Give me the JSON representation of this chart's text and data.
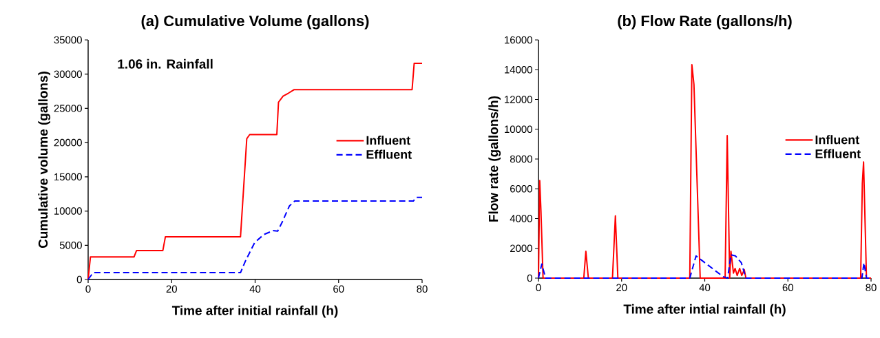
{
  "chart_data": [
    {
      "type": "line",
      "title": "(a) Cumulative Volume (gallons)",
      "xlabel": "Time after initial rainfall (h)",
      "ylabel": "Cumulative volume (gallons)",
      "annotations": [
        "1.06 in. Rainfall"
      ],
      "xlim": [
        0,
        80
      ],
      "ylim": [
        0,
        35000
      ],
      "xticks": [
        0,
        20,
        40,
        60,
        80
      ],
      "yticks": [
        0,
        5000,
        10000,
        15000,
        20000,
        25000,
        30000,
        35000
      ],
      "legend": "right",
      "series": [
        {
          "name": "Influent",
          "color": "#ff0000",
          "line_style": "solid",
          "x": [
            0,
            0.55,
            11.0,
            11.6,
            17.9,
            18.5,
            36.5,
            38.0,
            38.7,
            45.2,
            45.6,
            46.7,
            48.0,
            49.3,
            77.6,
            78.1,
            80
          ],
          "values": [
            0,
            3300,
            3300,
            4230,
            4230,
            6230,
            6230,
            20570,
            21170,
            21170,
            25900,
            26800,
            27230,
            27730,
            27730,
            31570,
            31570
          ]
        },
        {
          "name": "Effluent",
          "color": "#0000ff",
          "line_style": "dashed",
          "x": [
            0,
            1.2,
            36.5,
            37.7,
            39.9,
            42.1,
            44.3,
            45.4,
            46.5,
            48.2,
            49.5,
            77.9,
            78.7,
            80
          ],
          "values": [
            0,
            1000,
            1000,
            2730,
            5400,
            6570,
            7130,
            7070,
            8400,
            10730,
            11470,
            11470,
            12000,
            12000
          ]
        }
      ]
    },
    {
      "type": "line",
      "title": "(b) Flow Rate (gallons/h)",
      "xlabel": "Time after intial rainfall (h)",
      "ylabel": "Flow rate (gallons/h)",
      "xlim": [
        0,
        80
      ],
      "ylim": [
        0,
        16000
      ],
      "xticks": [
        0,
        20,
        40,
        60,
        80
      ],
      "yticks": [
        0,
        2000,
        4000,
        6000,
        8000,
        10000,
        12000,
        14000,
        16000
      ],
      "legend": "right",
      "series": [
        {
          "name": "Influent",
          "color": "#ff0000",
          "line_style": "solid",
          "x": [
            0,
            0.3,
            0.6,
            1.1,
            10.9,
            11.4,
            12.0,
            17.8,
            18.5,
            19.1,
            36.4,
            36.9,
            37.4,
            38.9,
            44.9,
            45.4,
            46.0,
            46.3,
            46.9,
            47.3,
            47.8,
            48.4,
            48.9,
            49.5,
            49.9,
            77.5,
            77.9,
            78.2,
            78.9,
            80
          ],
          "values": [
            0,
            6550,
            4500,
            0,
            0,
            1800,
            0,
            0,
            4180,
            0,
            0,
            14340,
            13000,
            0,
            0,
            9570,
            0,
            1800,
            340,
            650,
            180,
            650,
            180,
            570,
            0,
            0,
            6340,
            7800,
            0,
            0
          ]
        },
        {
          "name": "Effluent",
          "color": "#0000ff",
          "line_style": "dashed",
          "x": [
            0,
            0.8,
            1.7,
            36.4,
            37.9,
            44.4,
            45.5,
            46.3,
            47.4,
            48.8,
            49.9,
            77.8,
            78.3,
            78.9,
            80
          ],
          "values": [
            0,
            950,
            0,
            0,
            1490,
            100,
            0,
            1570,
            1490,
            1030,
            0,
            0,
            1030,
            0,
            0
          ]
        }
      ]
    }
  ]
}
